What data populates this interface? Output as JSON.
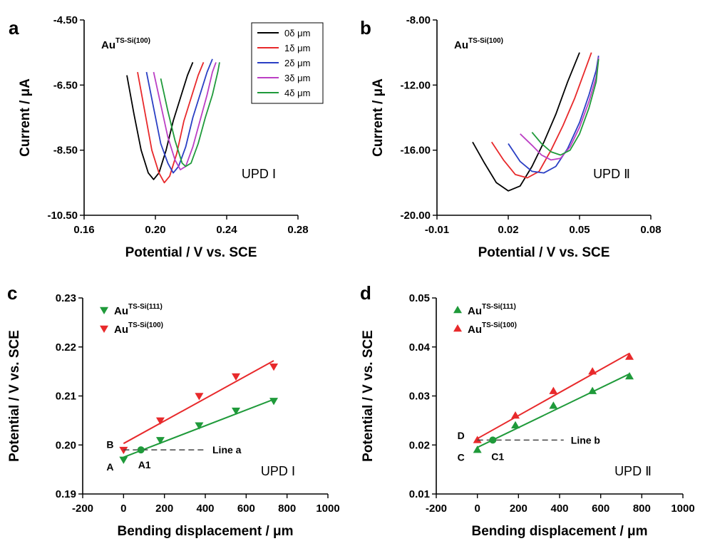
{
  "colors": {
    "black": "#000000",
    "red": "#e8292b",
    "blue": "#2a3fc4",
    "purple": "#bb3fc4",
    "green": "#1f9a3a",
    "dashed": "#444444"
  },
  "chart_data": [
    {
      "panel": "a",
      "type": "line",
      "xlabel": "Potential / V vs. SCE",
      "ylabel": "Current / μA",
      "xlim": [
        0.16,
        0.28
      ],
      "ylim": [
        -10.5,
        -4.5
      ],
      "xticks": [
        "0.16",
        "0.20",
        "0.24",
        "0.28"
      ],
      "yticks": [
        "-4.50",
        "-6.50",
        "-8.50",
        "-10.50"
      ],
      "inset_label_base": "Au",
      "inset_label_sup": "TS-Si(100)",
      "annotation": "UPD Ⅰ",
      "legend": [
        "0δ μm",
        "1δ μm",
        "2δ μm",
        "3δ μm",
        "4δ μm"
      ],
      "series": [
        {
          "name": "0δ μm",
          "color": "#000000",
          "x": [
            0.184,
            0.188,
            0.192,
            0.196,
            0.199,
            0.202,
            0.206,
            0.21,
            0.214,
            0.218,
            0.221
          ],
          "y": [
            -6.2,
            -7.4,
            -8.5,
            -9.2,
            -9.4,
            -9.2,
            -8.5,
            -7.6,
            -6.9,
            -6.2,
            -5.8
          ]
        },
        {
          "name": "1δ μm",
          "color": "#e8292b",
          "x": [
            0.19,
            0.194,
            0.198,
            0.202,
            0.205,
            0.208,
            0.212,
            0.216,
            0.22,
            0.224,
            0.227
          ],
          "y": [
            -6.1,
            -7.3,
            -8.5,
            -9.2,
            -9.5,
            -9.3,
            -8.6,
            -7.6,
            -6.9,
            -6.2,
            -5.8
          ]
        },
        {
          "name": "2δ μm",
          "color": "#2a3fc4",
          "x": [
            0.195,
            0.199,
            0.203,
            0.207,
            0.21,
            0.213,
            0.217,
            0.221,
            0.225,
            0.229,
            0.232
          ],
          "y": [
            -6.1,
            -7.2,
            -8.3,
            -8.9,
            -9.2,
            -9.0,
            -8.4,
            -7.5,
            -6.8,
            -6.1,
            -5.7
          ]
        },
        {
          "name": "3δ μm",
          "color": "#bb3fc4",
          "x": [
            0.199,
            0.203,
            0.207,
            0.211,
            0.214,
            0.217,
            0.221,
            0.225,
            0.229,
            0.232,
            0.234
          ],
          "y": [
            -6.1,
            -7.1,
            -8.1,
            -8.8,
            -9.1,
            -9.0,
            -8.4,
            -7.6,
            -6.8,
            -6.1,
            -5.8
          ]
        },
        {
          "name": "4δ μm",
          "color": "#1f9a3a",
          "x": [
            0.203,
            0.207,
            0.211,
            0.215,
            0.217,
            0.22,
            0.224,
            0.228,
            0.232,
            0.235,
            0.236
          ],
          "y": [
            -6.3,
            -7.3,
            -8.2,
            -8.9,
            -9.0,
            -8.9,
            -8.3,
            -7.5,
            -6.8,
            -6.1,
            -5.8
          ]
        }
      ]
    },
    {
      "panel": "b",
      "type": "line",
      "xlabel": "Potential / V vs. SCE",
      "ylabel": "Current / μA",
      "xlim": [
        -0.01,
        0.08
      ],
      "ylim": [
        -20.0,
        -8.0
      ],
      "xticks": [
        "-0.01",
        "0.02",
        "0.05",
        "0.08"
      ],
      "yticks": [
        "-8.00",
        "-12.00",
        "-16.00",
        "-20.00"
      ],
      "inset_label_base": "Au",
      "inset_label_sup": "TS-Si(100)",
      "annotation": "UPD Ⅱ",
      "series": [
        {
          "name": "0δ μm",
          "color": "#000000",
          "x": [
            0.005,
            0.01,
            0.015,
            0.02,
            0.025,
            0.03,
            0.035,
            0.04,
            0.045,
            0.05
          ],
          "y": [
            -15.5,
            -16.8,
            -18.0,
            -18.5,
            -18.2,
            -17.0,
            -15.5,
            -13.8,
            -11.8,
            -10.0
          ]
        },
        {
          "name": "1δ μm",
          "color": "#e8292b",
          "x": [
            0.013,
            0.018,
            0.023,
            0.028,
            0.033,
            0.038,
            0.043,
            0.048,
            0.052,
            0.055
          ],
          "y": [
            -15.5,
            -16.6,
            -17.5,
            -17.7,
            -17.3,
            -16.0,
            -14.5,
            -12.8,
            -11.2,
            -10.0
          ]
        },
        {
          "name": "2δ μm",
          "color": "#2a3fc4",
          "x": [
            0.02,
            0.025,
            0.03,
            0.035,
            0.04,
            0.045,
            0.05,
            0.054,
            0.057,
            0.058
          ],
          "y": [
            -15.6,
            -16.7,
            -17.3,
            -17.4,
            -17.0,
            -15.9,
            -14.3,
            -12.6,
            -11.1,
            -10.2
          ]
        },
        {
          "name": "3δ μm",
          "color": "#bb3fc4",
          "x": [
            0.025,
            0.03,
            0.034,
            0.038,
            0.042,
            0.046,
            0.05,
            0.054,
            0.057,
            0.058
          ],
          "y": [
            -15.0,
            -15.7,
            -16.3,
            -16.6,
            -16.5,
            -15.8,
            -14.6,
            -13.0,
            -11.5,
            -10.3
          ]
        },
        {
          "name": "4δ μm",
          "color": "#1f9a3a",
          "x": [
            0.03,
            0.034,
            0.038,
            0.042,
            0.046,
            0.05,
            0.054,
            0.057,
            0.058
          ],
          "y": [
            -14.9,
            -15.6,
            -16.1,
            -16.3,
            -16.0,
            -15.0,
            -13.4,
            -11.8,
            -10.4
          ]
        }
      ]
    },
    {
      "panel": "c",
      "type": "scatter",
      "xlabel": "Bending displacement / μm",
      "ylabel": "Potential / V vs. SCE",
      "xlim": [
        -200,
        1000
      ],
      "ylim": [
        0.19,
        0.23
      ],
      "xticks": [
        "-200",
        "0",
        "200",
        "400",
        "600",
        "800",
        "1000"
      ],
      "yticks": [
        "0.19",
        "0.20",
        "0.21",
        "0.22",
        "0.23"
      ],
      "marker": "triangle-down",
      "annotation": "UPD Ⅰ",
      "line_label": "Line a",
      "point_labels": {
        "A": "A",
        "B": "B",
        "A1": "A1"
      },
      "series": [
        {
          "name_base": "Au",
          "name_sup": "TS-Si(111)",
          "color": "#1f9a3a",
          "x": [
            0,
            180,
            370,
            550,
            735
          ],
          "y": [
            0.197,
            0.201,
            0.204,
            0.207,
            0.209
          ],
          "fit": [
            [
              0,
              0.1975
            ],
            [
              735,
              0.2093
            ]
          ]
        },
        {
          "name_base": "Au",
          "name_sup": "TS-Si(100)",
          "color": "#e8292b",
          "x": [
            0,
            180,
            370,
            550,
            735
          ],
          "y": [
            0.199,
            0.205,
            0.21,
            0.214,
            0.216
          ],
          "fit": [
            [
              0,
              0.2003
            ],
            [
              735,
              0.2172
            ]
          ]
        }
      ],
      "marked_point": {
        "x": 85,
        "y": 0.199
      },
      "dashed_line": {
        "x": [
          0,
          400
        ],
        "y": 0.199
      }
    },
    {
      "panel": "d",
      "type": "scatter",
      "xlabel": "Bending displacement / μm",
      "ylabel": "Potential / V vs. SCE",
      "xlim": [
        -200,
        1000
      ],
      "ylim": [
        0.01,
        0.05
      ],
      "xticks": [
        "-200",
        "0",
        "200",
        "400",
        "600",
        "800",
        "1000"
      ],
      "yticks": [
        "0.01",
        "0.02",
        "0.03",
        "0.04",
        "0.05"
      ],
      "marker": "triangle-up",
      "annotation": "UPD Ⅱ",
      "line_label": "Line b",
      "point_labels": {
        "C": "C",
        "D": "D",
        "C1": "C1"
      },
      "series": [
        {
          "name_base": "Au",
          "name_sup": "TS-Si(111)",
          "color": "#1f9a3a",
          "x": [
            0,
            185,
            370,
            560,
            740
          ],
          "y": [
            0.019,
            0.024,
            0.028,
            0.031,
            0.034
          ],
          "fit": [
            [
              0,
              0.0195
            ],
            [
              740,
              0.0345
            ]
          ]
        },
        {
          "name_base": "Au",
          "name_sup": "TS-Si(100)",
          "color": "#e8292b",
          "x": [
            0,
            185,
            370,
            560,
            740
          ],
          "y": [
            0.021,
            0.026,
            0.031,
            0.035,
            0.038
          ],
          "fit": [
            [
              0,
              0.0213
            ],
            [
              740,
              0.0387
            ]
          ]
        }
      ],
      "marked_point": {
        "x": 75,
        "y": 0.021
      },
      "dashed_line": {
        "x": [
          0,
          420
        ],
        "y": 0.021
      }
    }
  ]
}
